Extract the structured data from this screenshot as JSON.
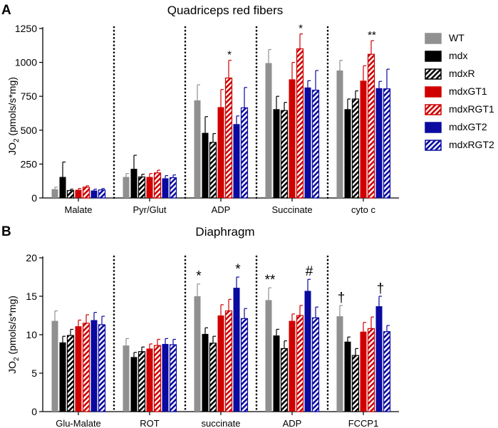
{
  "legend": {
    "entries": [
      {
        "name": "WT",
        "color": "#909090",
        "hatch": false
      },
      {
        "name": "mdx",
        "color": "#000000",
        "hatch": false
      },
      {
        "name": "mdxR",
        "color": "#000000",
        "hatch": true
      },
      {
        "name": "mdxGT1",
        "color": "#d00000",
        "hatch": false
      },
      {
        "name": "mdxRGT1",
        "color": "#d00000",
        "hatch": true
      },
      {
        "name": "mdxGT2",
        "color": "#0a0aa0",
        "hatch": false
      },
      {
        "name": "mdxRGT2",
        "color": "#0a0aa0",
        "hatch": true
      }
    ]
  },
  "chart_data": [
    {
      "type": "bar",
      "panel_label": "A",
      "title": "Quadriceps red fibers",
      "ylabel_main": "JO",
      "ylabel_sub": "2",
      "ylabel_rest": " (pmols/s*mg)",
      "ylim": [
        0,
        1250
      ],
      "yticks": [
        "0",
        "250",
        "500",
        "750",
        "1000",
        "1250"
      ],
      "categories": [
        "Malate",
        "Pyr/Glut",
        "ADP",
        "Succinate",
        "cyto c"
      ],
      "series": [
        {
          "name": "WT",
          "values": [
            65,
            155,
            720,
            995,
            940
          ],
          "errors": [
            15,
            25,
            115,
            100,
            75
          ]
        },
        {
          "name": "mdx",
          "values": [
            155,
            215,
            480,
            655,
            655
          ],
          "errors": [
            110,
            100,
            120,
            95,
            75
          ]
        },
        {
          "name": "mdxR",
          "values": [
            55,
            155,
            410,
            645,
            730
          ],
          "errors": [
            10,
            20,
            65,
            60,
            60
          ]
        },
        {
          "name": "mdxGT1",
          "values": [
            60,
            155,
            670,
            875,
            865
          ],
          "errors": [
            10,
            25,
            130,
            125,
            110
          ]
        },
        {
          "name": "mdxRGT1",
          "values": [
            80,
            185,
            885,
            1100,
            1060
          ],
          "errors": [
            10,
            20,
            130,
            110,
            100
          ]
        },
        {
          "name": "mdxGT2",
          "values": [
            55,
            145,
            545,
            815,
            810
          ],
          "errors": [
            10,
            20,
            60,
            50,
            50
          ]
        },
        {
          "name": "mdxRGT2",
          "values": [
            60,
            150,
            665,
            795,
            805
          ],
          "errors": [
            10,
            20,
            150,
            145,
            145
          ]
        }
      ],
      "annotations": [
        {
          "category": "ADP",
          "series": "mdxRGT1",
          "text": "*"
        },
        {
          "category": "Succinate",
          "series": "mdxRGT1",
          "text": "*"
        },
        {
          "category": "cyto c",
          "series": "mdxRGT1",
          "text": "**"
        }
      ],
      "separators": "dotted vertical lines between categories"
    },
    {
      "type": "bar",
      "panel_label": "B",
      "title": "Diaphragm",
      "ylabel_main": "JO",
      "ylabel_sub": "2",
      "ylabel_rest": " (pmols/s*mg)",
      "ylim": [
        0,
        20
      ],
      "yticks": [
        "0",
        "5",
        "10",
        "15",
        "20"
      ],
      "categories": [
        "Glu-Malate",
        "ROT",
        "succinate",
        "ADP",
        "FCCP1"
      ],
      "series": [
        {
          "name": "WT",
          "values": [
            11.8,
            8.6,
            15.0,
            14.5,
            12.4
          ],
          "errors": [
            1.3,
            0.9,
            1.6,
            1.6,
            1.4
          ]
        },
        {
          "name": "mdx",
          "values": [
            9.0,
            7.1,
            10.1,
            9.9,
            9.1
          ],
          "errors": [
            0.8,
            0.6,
            0.8,
            0.8,
            0.6
          ]
        },
        {
          "name": "mdxR",
          "values": [
            9.9,
            7.8,
            8.9,
            8.2,
            7.3
          ],
          "errors": [
            0.8,
            0.6,
            0.9,
            1.0,
            0.9
          ]
        },
        {
          "name": "mdxGT1",
          "values": [
            11.1,
            8.2,
            12.5,
            11.8,
            10.4
          ],
          "errors": [
            0.8,
            0.6,
            1.4,
            0.9,
            1.2
          ]
        },
        {
          "name": "mdxRGT1",
          "values": [
            11.5,
            8.6,
            13.1,
            12.5,
            10.8
          ],
          "errors": [
            1.1,
            0.8,
            1.5,
            1.3,
            1.5
          ]
        },
        {
          "name": "mdxGT2",
          "values": [
            11.9,
            8.8,
            16.1,
            15.7,
            13.7
          ],
          "errors": [
            1.0,
            0.7,
            1.4,
            1.5,
            1.3
          ]
        },
        {
          "name": "mdxRGT2",
          "values": [
            11.3,
            8.7,
            12.1,
            12.2,
            10.4
          ],
          "errors": [
            1.1,
            0.7,
            1.3,
            1.4,
            0.8
          ]
        }
      ],
      "annotations": [
        {
          "category": "succinate",
          "series": "WT",
          "text": "*"
        },
        {
          "category": "succinate",
          "series": "mdxGT2",
          "text": "*"
        },
        {
          "category": "ADP",
          "series": "WT",
          "text": "**"
        },
        {
          "category": "ADP",
          "series": "mdxGT2",
          "text": "#"
        },
        {
          "category": "FCCP1",
          "series": "WT",
          "text": "†"
        },
        {
          "category": "FCCP1",
          "series": "mdxGT2",
          "text": "†"
        }
      ],
      "separators": "dotted vertical lines between categories"
    }
  ]
}
